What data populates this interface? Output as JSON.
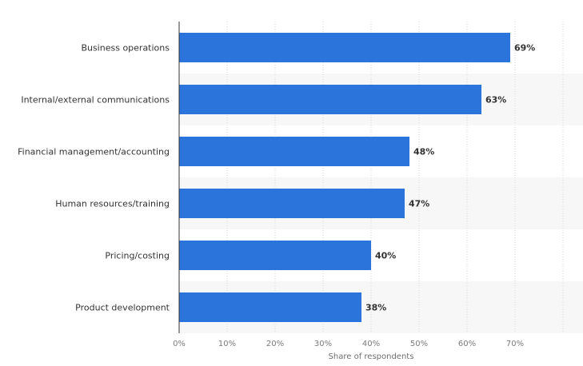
{
  "chart_data": {
    "type": "bar",
    "orientation": "horizontal",
    "categories": [
      "Business operations",
      "Internal/external communications",
      "Financial management/accounting",
      "Human resources/training",
      "Pricing/costing",
      "Product development"
    ],
    "values": [
      69,
      63,
      48,
      47,
      40,
      38
    ],
    "value_labels": [
      "69%",
      "63%",
      "48%",
      "47%",
      "40%",
      "38%"
    ],
    "title": "",
    "xlabel": "Share of respondents",
    "ylabel": "",
    "xlim": [
      0,
      80
    ],
    "xticks": [
      0,
      10,
      20,
      30,
      40,
      50,
      60,
      70
    ],
    "xtick_labels": [
      "0%",
      "10%",
      "20%",
      "30%",
      "40%",
      "50%",
      "60%",
      "70%"
    ],
    "grid": "vertical dotted",
    "legend": "none",
    "colors": {
      "bar": "#2a74db",
      "band": "#f7f7f7",
      "grid": "#d9d9d9",
      "axis": "#333333"
    }
  }
}
